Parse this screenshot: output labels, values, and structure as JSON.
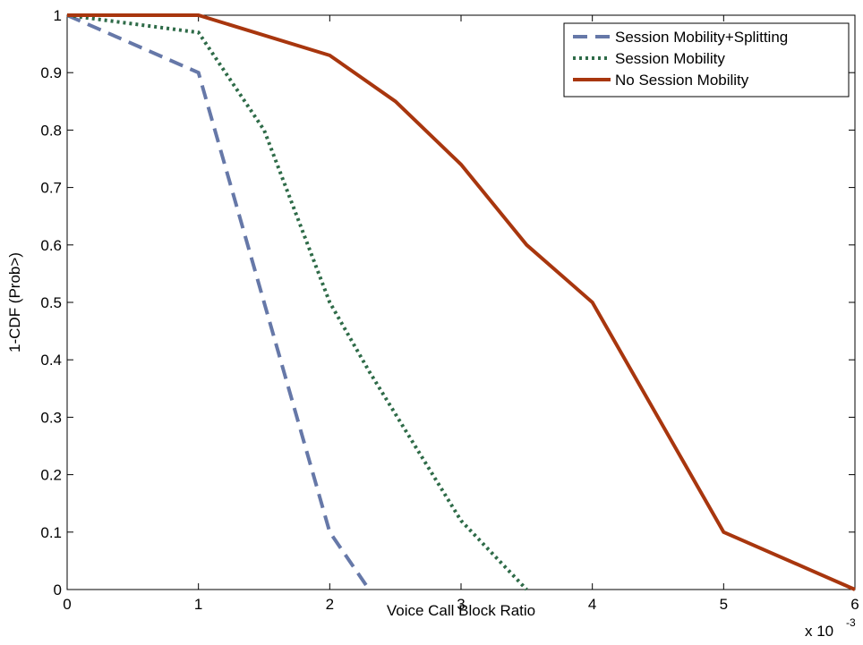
{
  "chart_data": {
    "type": "line",
    "xlabel": "Voice Call Block Ratio",
    "ylabel": "1-CDF (Prob>)",
    "x_multiplier_label": {
      "base": "x 10",
      "exponent": "-3"
    },
    "xlim": [
      0,
      6
    ],
    "ylim": [
      0,
      1
    ],
    "x_ticks": [
      0,
      1,
      2,
      3,
      4,
      5,
      6
    ],
    "x_tick_labels": [
      "0",
      "1",
      "2",
      "3",
      "4",
      "5",
      "6"
    ],
    "y_ticks": [
      0,
      0.1,
      0.2,
      0.3,
      0.4,
      0.5,
      0.6,
      0.7,
      0.8,
      0.9,
      1
    ],
    "y_tick_labels": [
      "0",
      "0.1",
      "0.2",
      "0.3",
      "0.4",
      "0.5",
      "0.6",
      "0.7",
      "0.8",
      "0.9",
      "1"
    ],
    "grid": false,
    "legend_position": "top-right",
    "series": [
      {
        "name": "Session Mobility+Splitting",
        "color": "#6678a8",
        "style": "dashed",
        "x": [
          0,
          1,
          2,
          2.3
        ],
        "y": [
          1,
          0.9,
          0.1,
          0
        ]
      },
      {
        "name": "Session Mobility",
        "color": "#2e6b48",
        "style": "dotted",
        "x": [
          0,
          1,
          1.5,
          2,
          2.3,
          3,
          3.5
        ],
        "y": [
          1,
          0.97,
          0.8,
          0.5,
          0.38,
          0.12,
          0
        ]
      },
      {
        "name": "No Session Mobility",
        "color": "#a8360e",
        "style": "solid",
        "x": [
          0,
          1,
          2,
          2.5,
          3,
          3.5,
          4,
          5,
          6
        ],
        "y": [
          1,
          1,
          0.93,
          0.85,
          0.74,
          0.6,
          0.5,
          0.1,
          0
        ]
      }
    ]
  }
}
